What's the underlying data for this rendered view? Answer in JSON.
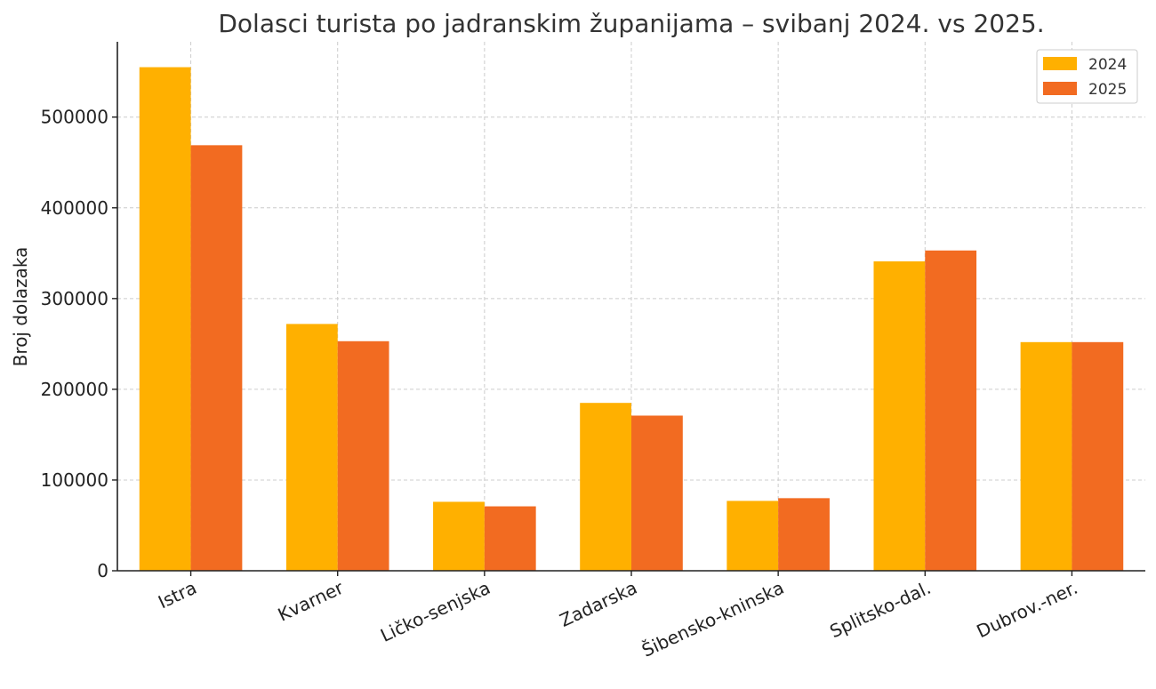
{
  "chart_data": {
    "type": "bar",
    "title": "Dolasci turista po jadranskim županijama – svibanj 2024. vs 2025.",
    "xlabel": "",
    "ylabel": "Broj dolazaka",
    "categories": [
      "Istra",
      "Kvarner",
      "Ličko-senjska",
      "Zadarska",
      "Šibensko-kninska",
      "Splitsko-dal.",
      "Dubrov.-ner."
    ],
    "series": [
      {
        "name": "2024",
        "color": "#FFB000",
        "values": [
          555000,
          272000,
          76000,
          185000,
          77000,
          341000,
          252000
        ]
      },
      {
        "name": "2025",
        "color": "#F26B21",
        "values": [
          469000,
          253000,
          71000,
          171000,
          80000,
          353000,
          252000
        ]
      }
    ],
    "ylim": [
      0,
      583000
    ],
    "yticks": [
      0,
      100000,
      200000,
      300000,
      400000,
      500000
    ],
    "grid": true,
    "legend_position": "top-right"
  }
}
